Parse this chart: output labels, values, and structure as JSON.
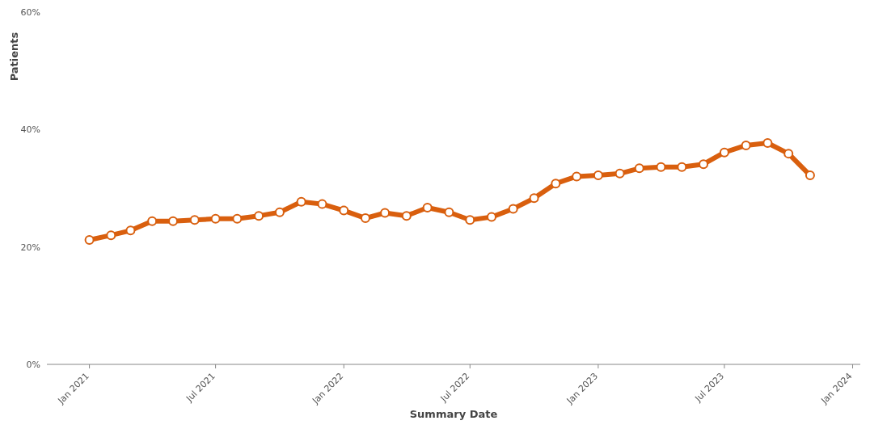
{
  "chart_data": {
    "type": "line",
    "xlabel": "Summary Date",
    "ylabel": "Patients",
    "x": [
      "2021-01",
      "2021-02",
      "2021-03",
      "2021-04",
      "2021-05",
      "2021-06",
      "2021-07",
      "2021-08",
      "2021-09",
      "2021-10",
      "2021-11",
      "2021-12",
      "2022-01",
      "2022-02",
      "2022-03",
      "2022-04",
      "2022-05",
      "2022-06",
      "2022-07",
      "2022-08",
      "2022-09",
      "2022-10",
      "2022-11",
      "2022-12",
      "2023-01",
      "2023-02",
      "2023-03",
      "2023-04",
      "2023-05",
      "2023-06",
      "2023-07",
      "2023-08",
      "2023-09",
      "2023-10",
      "2023-11"
    ],
    "series": [
      {
        "color": "#d95f0e",
        "values": [
          21.2,
          22.0,
          22.8,
          24.4,
          24.4,
          24.6,
          24.8,
          24.8,
          25.3,
          25.9,
          27.7,
          27.3,
          26.2,
          24.9,
          25.8,
          25.3,
          26.7,
          25.9,
          24.6,
          25.1,
          26.5,
          28.3,
          30.8,
          32.0,
          32.2,
          32.5,
          33.4,
          33.6,
          33.6,
          34.1,
          36.1,
          37.3,
          37.7,
          35.9,
          32.2
        ]
      }
    ],
    "xlim": [
      "2020-11-01",
      "2024-01-12"
    ],
    "xticks": [
      {
        "value": "2021-01",
        "label": "Jan 2021"
      },
      {
        "value": "2021-07",
        "label": "Jul 2021"
      },
      {
        "value": "2022-01",
        "label": "Jan 2022"
      },
      {
        "value": "2022-07",
        "label": "Jul 2022"
      },
      {
        "value": "2023-01",
        "label": "Jan 2023"
      },
      {
        "value": "2023-07",
        "label": "Jul 2023"
      },
      {
        "value": "2024-01",
        "label": "Jan 2024"
      }
    ],
    "ylim": [
      0,
      60
    ],
    "yticks": [
      {
        "value": 0,
        "label": "0%"
      },
      {
        "value": 20,
        "label": "20%"
      },
      {
        "value": 40,
        "label": "40%"
      },
      {
        "value": 60,
        "label": "60%"
      }
    ],
    "grid": false,
    "marker": "circle",
    "line_style": "solid"
  }
}
